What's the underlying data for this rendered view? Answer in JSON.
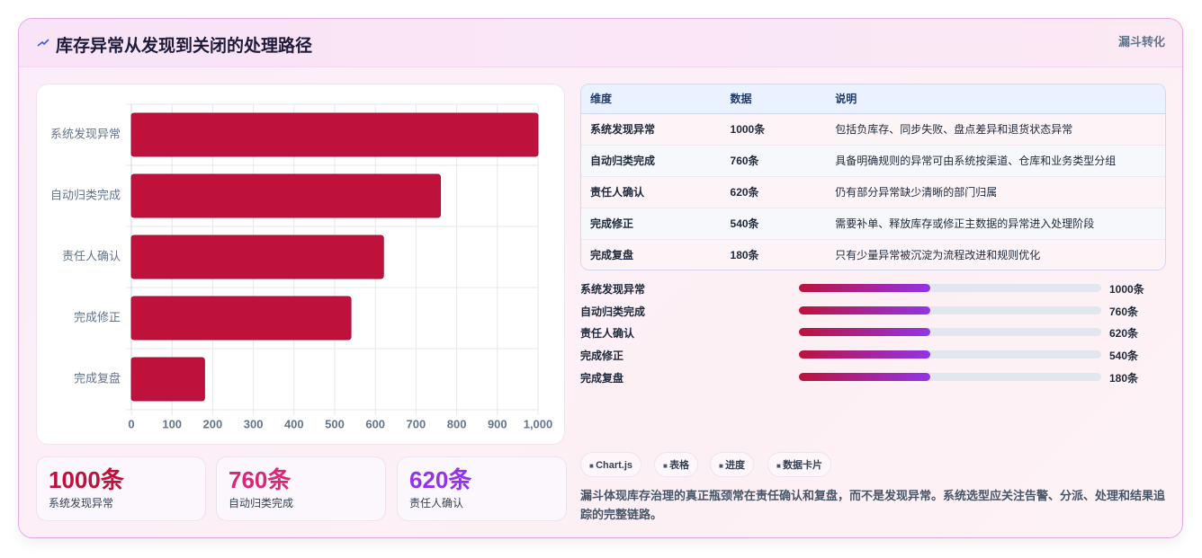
{
  "header": {
    "title": "库存异常从发现到关闭的处理路径",
    "badge": "漏斗转化"
  },
  "chart_data": {
    "type": "bar",
    "orientation": "horizontal",
    "categories": [
      "系统发现异常",
      "自动归类完成",
      "责任人确认",
      "完成修正",
      "完成复盘"
    ],
    "values": [
      1000,
      760,
      620,
      540,
      180
    ],
    "color": "#be123c",
    "xlim": [
      0,
      1000
    ],
    "xticks": [
      0,
      100,
      200,
      300,
      400,
      500,
      600,
      700,
      800,
      900,
      {
        "value": 1000,
        "label": "1,000"
      }
    ],
    "grid": true
  },
  "stats": [
    {
      "value": "1000条",
      "label": "系统发现异常",
      "color": "#be123c"
    },
    {
      "value": "760条",
      "label": "自动归类完成",
      "color": "#db2777"
    },
    {
      "value": "620条",
      "label": "责任人确认",
      "color": "#9333ea"
    }
  ],
  "table": {
    "columns": [
      "维度",
      "数据",
      "说明"
    ],
    "rows": [
      [
        "系统发现异常",
        "1000条",
        "包括负库存、同步失败、盘点差异和退货状态异常"
      ],
      [
        "自动归类完成",
        "760条",
        "具备明确规则的异常可由系统按渠道、仓库和业务类型分组"
      ],
      [
        "责任人确认",
        "620条",
        "仍有部分异常缺少清晰的部门归属"
      ],
      [
        "完成修正",
        "540条",
        "需要补单、释放库存或修正主数据的异常进入处理阶段"
      ],
      [
        "完成复盘",
        "180条",
        "只有少量异常被沉淀为流程改进和规则优化"
      ]
    ]
  },
  "progress": [
    {
      "label": "系统发现异常",
      "value": "1000条"
    },
    {
      "label": "自动归类完成",
      "value": "760条"
    },
    {
      "label": "责任人确认",
      "value": "620条"
    },
    {
      "label": "完成修正",
      "value": "540条"
    },
    {
      "label": "完成复盘",
      "value": "180条"
    }
  ],
  "tags": [
    "Chart.js",
    "表格",
    "进度",
    "数据卡片"
  ],
  "note": "漏斗体现库存治理的真正瓶颈常在责任确认和复盘，而不是发现异常。系统选型应关注告警、分派、处理和结果追踪的完整链路。"
}
